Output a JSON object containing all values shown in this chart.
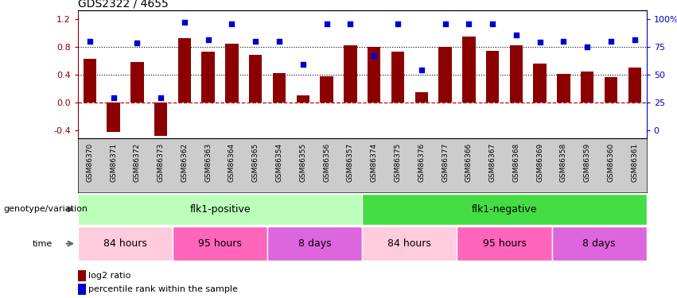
{
  "title": "GDS2322 / 4655",
  "samples": [
    "GSM86370",
    "GSM86371",
    "GSM86372",
    "GSM86373",
    "GSM86362",
    "GSM86363",
    "GSM86364",
    "GSM86365",
    "GSM86354",
    "GSM86355",
    "GSM86356",
    "GSM86357",
    "GSM86374",
    "GSM86375",
    "GSM86376",
    "GSM86377",
    "GSM86366",
    "GSM86367",
    "GSM86368",
    "GSM86369",
    "GSM86358",
    "GSM86359",
    "GSM86360",
    "GSM86361"
  ],
  "log2_ratio": [
    0.63,
    -0.42,
    0.58,
    -0.48,
    0.92,
    0.73,
    0.84,
    0.68,
    0.42,
    0.1,
    0.37,
    0.82,
    0.8,
    0.73,
    0.15,
    0.8,
    0.95,
    0.74,
    0.82,
    0.56,
    0.41,
    0.44,
    0.36,
    0.5
  ],
  "percentile": [
    0.88,
    0.07,
    0.85,
    0.07,
    1.15,
    0.9,
    1.13,
    0.88,
    0.88,
    0.54,
    1.13,
    1.13,
    0.67,
    1.13,
    0.47,
    1.13,
    1.13,
    1.13,
    0.97,
    0.87,
    0.88,
    0.8,
    0.88,
    0.9
  ],
  "bar_color": "#8B0000",
  "dot_color": "#0000CC",
  "hline_color": "#CC0000",
  "yticks_left": [
    -0.4,
    0.0,
    0.4,
    0.8,
    1.2
  ],
  "yticks_right": [
    0,
    25,
    50,
    75,
    100
  ],
  "ylim_left": [
    -0.52,
    1.32
  ],
  "dotted_lines": [
    0.4,
    0.8
  ],
  "genotype_groups": [
    {
      "label": "flk1-positive",
      "start": 0,
      "end": 12,
      "color": "#BBFFBB"
    },
    {
      "label": "flk1-negative",
      "start": 12,
      "end": 24,
      "color": "#44DD44"
    }
  ],
  "time_groups": [
    {
      "label": "84 hours",
      "start": 0,
      "end": 4,
      "color": "#FFCCDD"
    },
    {
      "label": "95 hours",
      "start": 4,
      "end": 8,
      "color": "#FF66BB"
    },
    {
      "label": "8 days",
      "start": 8,
      "end": 12,
      "color": "#DD66DD"
    },
    {
      "label": "84 hours",
      "start": 12,
      "end": 16,
      "color": "#FFCCDD"
    },
    {
      "label": "95 hours",
      "start": 16,
      "end": 20,
      "color": "#FF66BB"
    },
    {
      "label": "8 days",
      "start": 20,
      "end": 24,
      "color": "#DD66DD"
    }
  ],
  "sample_bg_color": "#CCCCCC",
  "label_color": "#555555"
}
